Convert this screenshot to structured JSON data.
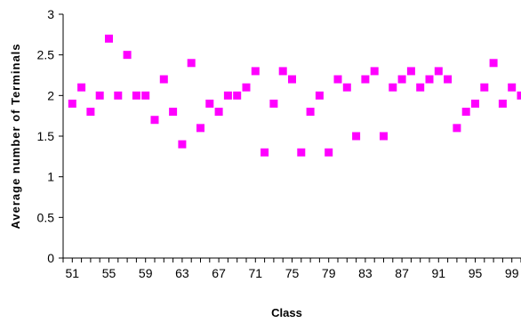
{
  "chart_data": {
    "type": "scatter",
    "title": "",
    "xlabel": "Class",
    "ylabel": "Average number of Terminals",
    "xlim": [
      50,
      100
    ],
    "ylim": [
      0,
      3
    ],
    "x_ticks": [
      51,
      55,
      59,
      63,
      67,
      71,
      75,
      79,
      83,
      87,
      91,
      95,
      99
    ],
    "y_ticks": [
      0,
      0.5,
      1,
      1.5,
      2,
      2.5,
      3
    ],
    "grid": false,
    "legend": "none",
    "marker": "square",
    "color": "#ff00ff",
    "series": [
      {
        "points": [
          [
            51,
            1.9
          ],
          [
            52,
            2.1
          ],
          [
            53,
            1.8
          ],
          [
            54,
            2.0
          ],
          [
            55,
            2.7
          ],
          [
            56,
            2.0
          ],
          [
            57,
            2.5
          ],
          [
            58,
            2.0
          ],
          [
            59,
            2.0
          ],
          [
            60,
            1.7
          ],
          [
            61,
            2.2
          ],
          [
            62,
            1.8
          ],
          [
            63,
            1.4
          ],
          [
            64,
            2.4
          ],
          [
            65,
            1.6
          ],
          [
            66,
            1.9
          ],
          [
            67,
            1.8
          ],
          [
            68,
            2.0
          ],
          [
            69,
            2.0
          ],
          [
            70,
            2.1
          ],
          [
            71,
            2.3
          ],
          [
            72,
            1.3
          ],
          [
            73,
            1.9
          ],
          [
            74,
            2.3
          ],
          [
            75,
            2.2
          ],
          [
            76,
            1.3
          ],
          [
            77,
            1.8
          ],
          [
            78,
            2.0
          ],
          [
            79,
            1.3
          ],
          [
            80,
            2.2
          ],
          [
            81,
            2.1
          ],
          [
            82,
            1.5
          ],
          [
            83,
            2.2
          ],
          [
            84,
            2.3
          ],
          [
            85,
            1.5
          ],
          [
            86,
            2.1
          ],
          [
            87,
            2.2
          ],
          [
            88,
            2.3
          ],
          [
            89,
            2.1
          ],
          [
            90,
            2.2
          ],
          [
            91,
            2.3
          ],
          [
            92,
            2.2
          ],
          [
            93,
            1.6
          ],
          [
            94,
            1.8
          ],
          [
            95,
            1.9
          ],
          [
            96,
            2.1
          ],
          [
            97,
            2.4
          ],
          [
            98,
            1.9
          ],
          [
            99,
            2.1
          ],
          [
            100,
            2.0
          ]
        ]
      }
    ]
  }
}
